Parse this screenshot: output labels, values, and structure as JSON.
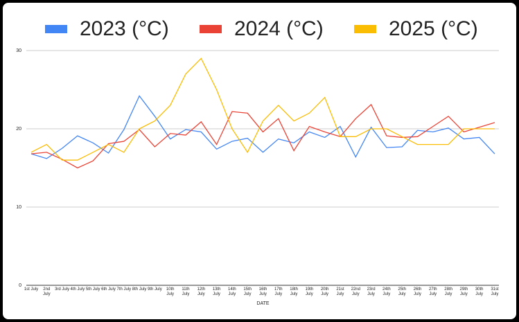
{
  "chart_data": {
    "type": "line",
    "x_label": "DATE",
    "categories": [
      "1st July",
      "2nd July",
      "3rd July",
      "4th July",
      "5th July",
      "6th July",
      "7th July",
      "8th July",
      "9th July",
      "10th July",
      "11th July",
      "12th July",
      "13th July",
      "14th July",
      "15th July",
      "16th July",
      "17th July",
      "18th July",
      "19th July",
      "20th July",
      "21st July",
      "22nd July",
      "23rd July",
      "24th July",
      "25th July",
      "26th July",
      "27th July",
      "28th July",
      "29th July",
      "30th July",
      "31st July"
    ],
    "series": [
      {
        "name": "2023 (°C)",
        "color": "#4285f4",
        "values": [
          16.8,
          16.2,
          17.5,
          19.1,
          18.2,
          16.9,
          19.9,
          24.2,
          21.6,
          18.7,
          19.9,
          19.6,
          17.4,
          18.4,
          18.8,
          17.0,
          18.7,
          18.2,
          19.6,
          18.9,
          20.3,
          16.4,
          20.2,
          17.6,
          17.7,
          19.8,
          19.6,
          20.1,
          18.7,
          18.9,
          16.8
        ]
      },
      {
        "name": "2024 (°C)",
        "color": "#ea4335",
        "values": [
          16.8,
          17.0,
          16.1,
          15.0,
          15.9,
          18.1,
          18.4,
          19.9,
          17.7,
          19.4,
          19.2,
          20.9,
          18.0,
          22.2,
          22.0,
          19.6,
          21.3,
          17.2,
          20.3,
          19.6,
          19.0,
          21.3,
          23.1,
          19.1,
          18.9,
          19.0,
          20.3,
          21.6,
          19.6,
          20.2,
          20.8
        ]
      },
      {
        "name": "2025 (°C)",
        "color": "#fbbc04",
        "values": [
          17,
          18,
          16,
          16,
          17,
          18,
          17,
          20,
          21,
          23,
          27,
          29,
          25,
          20,
          17,
          21,
          23,
          21,
          22,
          24,
          19,
          19,
          20,
          20,
          19,
          18,
          18,
          18,
          20,
          20,
          20
        ]
      }
    ],
    "ylim": [
      0,
      30
    ],
    "yticks": [
      0,
      10,
      20,
      30
    ],
    "grid": true,
    "legend": "top"
  }
}
